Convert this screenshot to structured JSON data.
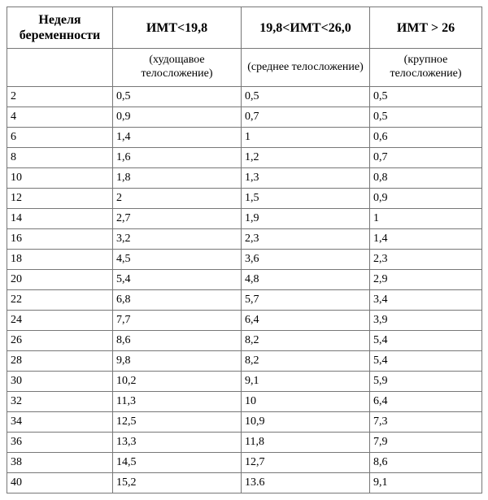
{
  "table": {
    "type": "table",
    "background_color": "#ffffff",
    "border_color": "#777777",
    "font_family": "Times New Roman",
    "header_fontsize": 16,
    "subheader_fontsize": 14,
    "body_fontsize": 14,
    "columns": [
      {
        "header": "Неделя беременности",
        "subheader": "",
        "width": 130
      },
      {
        "header": "ИМТ<19,8",
        "subheader": "(худощавое телосложение)",
        "width": 158
      },
      {
        "header": "19,8<ИМТ<26,0",
        "subheader": "(среднее телосложение)",
        "width": 158
      },
      {
        "header": "ИМТ > 26",
        "subheader": "(крупное телосложение)",
        "width": 138
      }
    ],
    "rows": [
      [
        "2",
        "0,5",
        "0,5",
        "0,5"
      ],
      [
        "4",
        "0,9",
        "0,7",
        "0,5"
      ],
      [
        "6",
        "1,4",
        "1",
        "0,6"
      ],
      [
        "8",
        "1,6",
        "1,2",
        "0,7"
      ],
      [
        "10",
        "1,8",
        "1,3",
        "0,8"
      ],
      [
        "12",
        "2",
        "1,5",
        "0,9"
      ],
      [
        " 14",
        " 2,7",
        "1,9",
        "1"
      ],
      [
        "16",
        "3,2",
        "2,3",
        "1,4"
      ],
      [
        "18",
        "4,5",
        "3,6",
        "2,3"
      ],
      [
        "20",
        "5,4",
        "4,8",
        "2,9"
      ],
      [
        "22",
        "6,8",
        "5,7",
        "3,4"
      ],
      [
        "24",
        "7,7",
        "6,4",
        "3,9"
      ],
      [
        "26",
        "8,6",
        "8,2",
        "5,4"
      ],
      [
        "28",
        "9,8",
        "8,2",
        "5,4"
      ],
      [
        "30",
        "10,2",
        "9,1",
        "5,9"
      ],
      [
        "32",
        "11,3",
        "10",
        "6,4"
      ],
      [
        "34",
        "12,5",
        "10,9",
        "7,3"
      ],
      [
        "36",
        "13,3",
        "11,8",
        "7,9"
      ],
      [
        "38",
        "14,5",
        "12,7",
        "8,6"
      ],
      [
        "40",
        "15,2",
        "13.6",
        "9,1"
      ]
    ]
  }
}
